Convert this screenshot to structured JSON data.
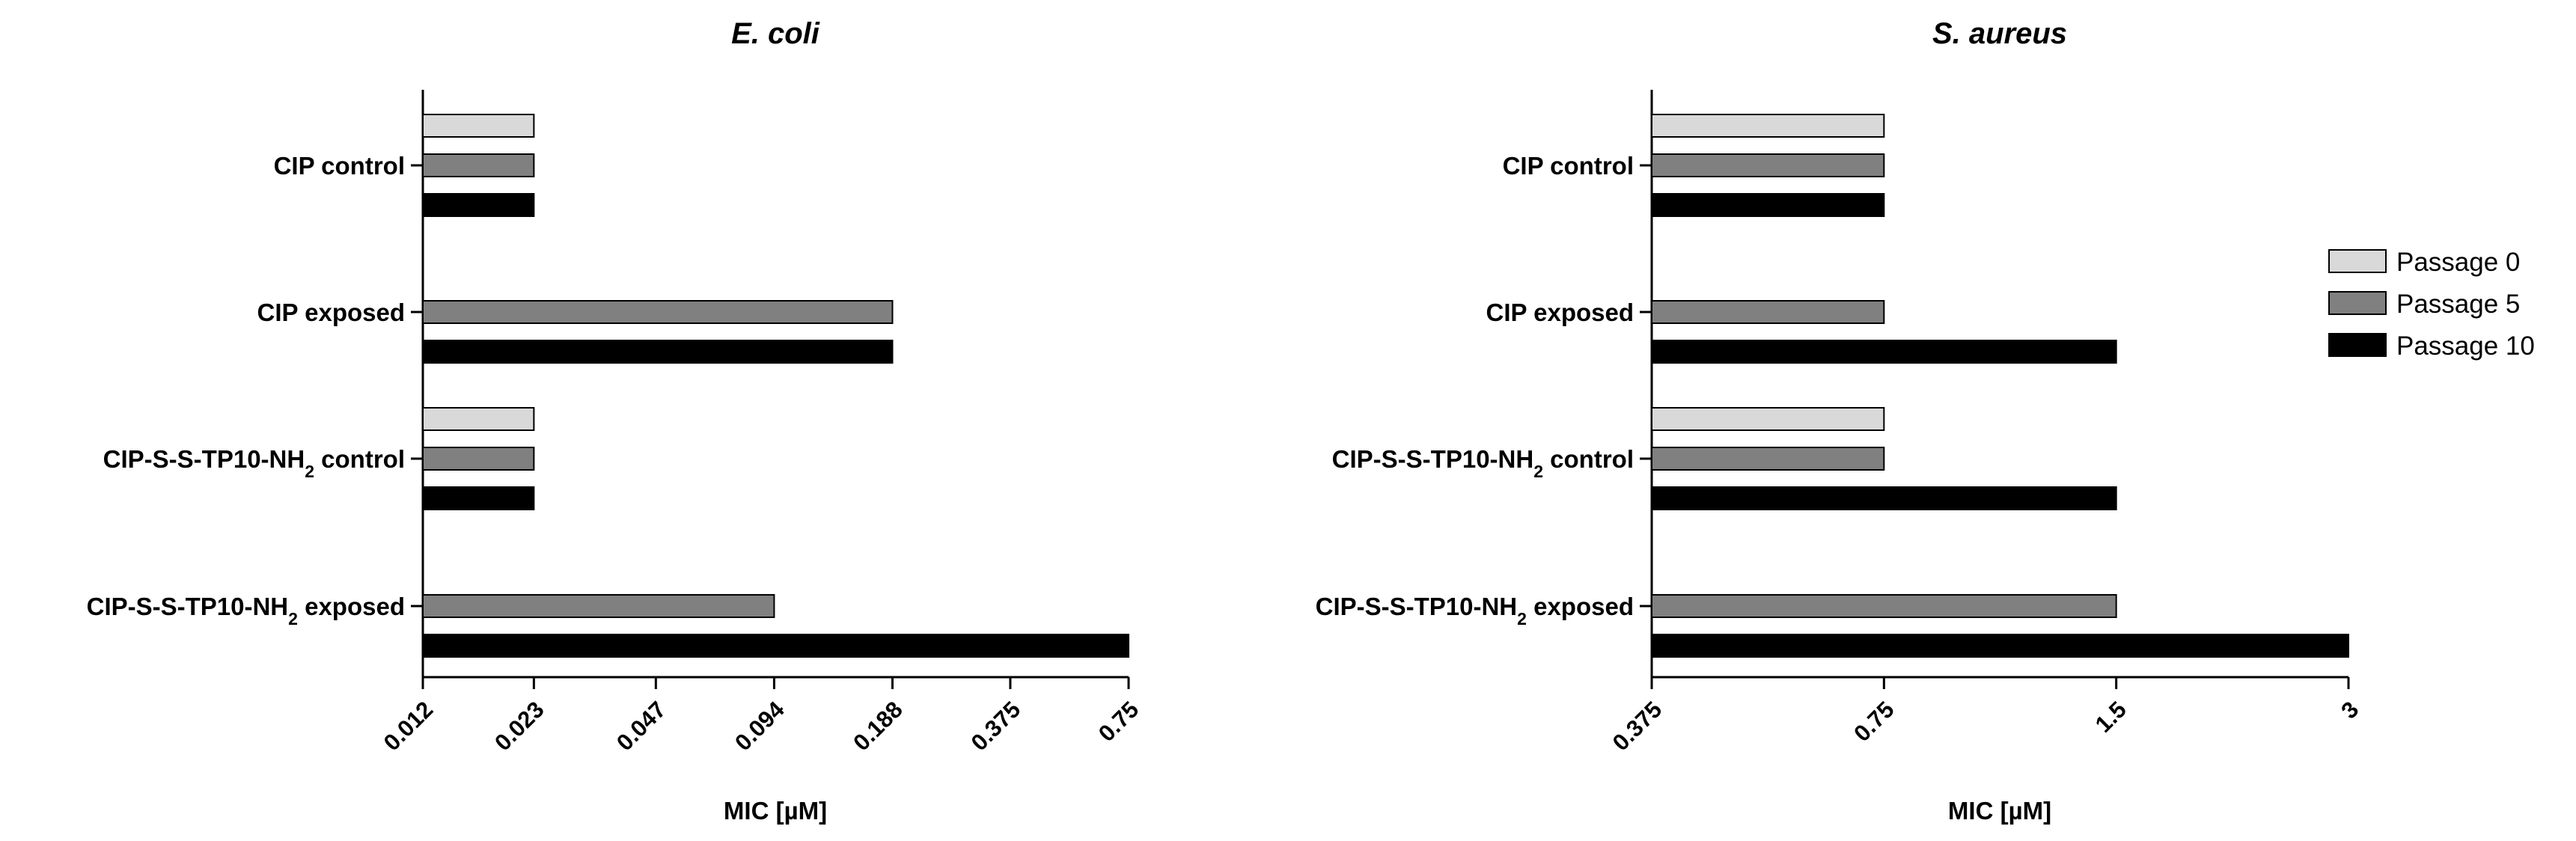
{
  "chart_data": [
    {
      "type": "bar",
      "orientation": "horizontal",
      "title": "E. coli",
      "xlabel": "MIC [µM]",
      "x_scale": "log2",
      "xlim": [
        0.012,
        0.75
      ],
      "xticks": [
        "0.012",
        "0.023",
        "0.047",
        "0.094",
        "0.188",
        "0.375",
        "0.75"
      ],
      "categories": [
        {
          "label": "CIP control",
          "base": "CIP control",
          "sub": "",
          "suffix": ""
        },
        {
          "label": "CIP exposed",
          "base": "CIP exposed",
          "sub": "",
          "suffix": ""
        },
        {
          "label": "CIP-S-S-TP10-NH2 control",
          "base": "CIP-S-S-TP10-NH",
          "sub": "2",
          "suffix": " control"
        },
        {
          "label": "CIP-S-S-TP10-NH2 exposed",
          "base": "CIP-S-S-TP10-NH",
          "sub": "2",
          "suffix": " exposed"
        }
      ],
      "series": [
        {
          "name": "Passage 0",
          "color": "#d9d9d9",
          "values": [
            0.023,
            null,
            0.023,
            null
          ]
        },
        {
          "name": "Passage 5",
          "color": "#808080",
          "values": [
            0.023,
            0.188,
            0.023,
            0.094
          ]
        },
        {
          "name": "Passage 10",
          "color": "#000000",
          "values": [
            0.023,
            0.188,
            0.023,
            0.75
          ]
        }
      ]
    },
    {
      "type": "bar",
      "orientation": "horizontal",
      "title": "S. aureus",
      "xlabel": "MIC [µM]",
      "x_scale": "log2",
      "xlim": [
        0.375,
        3
      ],
      "xticks": [
        "0.375",
        "0.75",
        "1.5",
        "3"
      ],
      "categories": [
        {
          "label": "CIP control",
          "base": "CIP control",
          "sub": "",
          "suffix": ""
        },
        {
          "label": "CIP exposed",
          "base": "CIP exposed",
          "sub": "",
          "suffix": ""
        },
        {
          "label": "CIP-S-S-TP10-NH2 control",
          "base": "CIP-S-S-TP10-NH",
          "sub": "2",
          "suffix": " control"
        },
        {
          "label": "CIP-S-S-TP10-NH2 exposed",
          "base": "CIP-S-S-TP10-NH",
          "sub": "2",
          "suffix": " exposed"
        }
      ],
      "series": [
        {
          "name": "Passage 0",
          "color": "#d9d9d9",
          "values": [
            0.75,
            null,
            0.75,
            null
          ]
        },
        {
          "name": "Passage 5",
          "color": "#808080",
          "values": [
            0.75,
            0.75,
            0.75,
            1.5
          ]
        },
        {
          "name": "Passage 10",
          "color": "#000000",
          "values": [
            0.75,
            1.5,
            1.5,
            3
          ]
        }
      ]
    }
  ],
  "legend": {
    "placement": "right",
    "items": [
      {
        "name": "Passage 0",
        "color": "#d9d9d9"
      },
      {
        "name": "Passage 5",
        "color": "#808080"
      },
      {
        "name": "Passage 10",
        "color": "#000000"
      }
    ]
  }
}
